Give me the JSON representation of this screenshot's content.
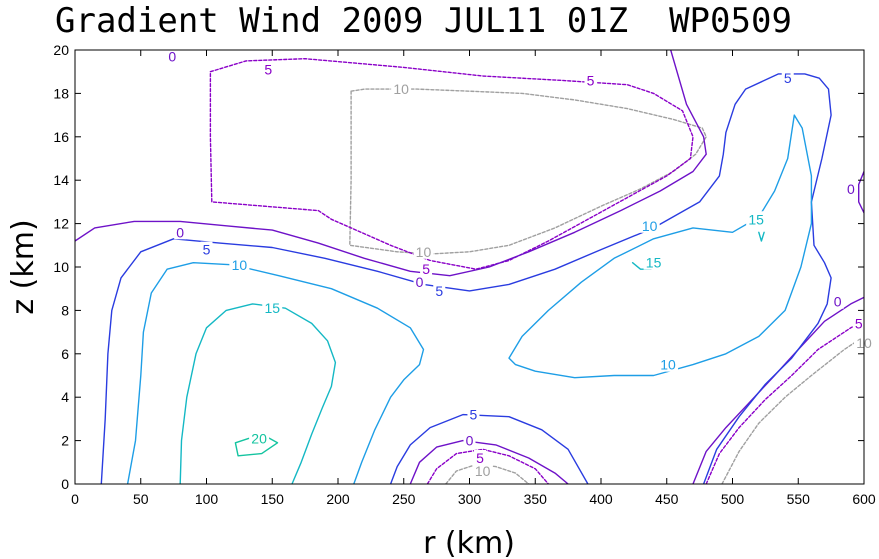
{
  "chart_data": {
    "type": "contour",
    "title": "Gradient Wind 2009 JUL11 01Z  WP0509",
    "xlabel": "r (km)",
    "ylabel": "z (km)",
    "xlim": [
      0,
      600
    ],
    "ylim": [
      0,
      20
    ],
    "xticks": [
      0,
      50,
      100,
      150,
      200,
      250,
      300,
      350,
      400,
      450,
      500,
      550,
      600
    ],
    "yticks": [
      0,
      2,
      4,
      6,
      8,
      10,
      12,
      14,
      16,
      18,
      20
    ],
    "grid": false,
    "colors": {
      "-10": "#a0a0a0",
      "-5": "#8a00c8",
      "0": "#6e12c8",
      "5": "#2a3ce0",
      "10": "#1e9ee6",
      "15": "#14b8c4",
      "20": "#14c4a0"
    },
    "contours": [
      {
        "level": "-10",
        "dashed": true,
        "points": [
          [
            210,
            18.1
          ],
          [
            220,
            18.2
          ],
          [
            260,
            18.2
          ],
          [
            300,
            18.1
          ],
          [
            340,
            18.0
          ],
          [
            380,
            17.7
          ],
          [
            420,
            17.3
          ],
          [
            455,
            16.8
          ],
          [
            477,
            16.4
          ],
          [
            480,
            16.0
          ],
          [
            472,
            15.2
          ],
          [
            455,
            14.4
          ],
          [
            430,
            13.6
          ],
          [
            400,
            12.8
          ],
          [
            365,
            11.8
          ],
          [
            330,
            11.0
          ],
          [
            300,
            10.7
          ],
          [
            270,
            10.6
          ],
          [
            245,
            10.7
          ],
          [
            209,
            11.0
          ],
          [
            210,
            14.0
          ],
          [
            210,
            18.1
          ]
        ]
      },
      {
        "level": "-10",
        "dashed": true,
        "points": [
          [
            282,
            0
          ],
          [
            290,
            0.6
          ],
          [
            305,
            0.9
          ],
          [
            320,
            0.8
          ],
          [
            335,
            0.5
          ],
          [
            345,
            0
          ]
        ]
      },
      {
        "level": "-10",
        "dashed": true,
        "points": [
          [
            492,
            0
          ],
          [
            505,
            1.5
          ],
          [
            520,
            2.8
          ],
          [
            540,
            4.0
          ],
          [
            560,
            5.0
          ],
          [
            585,
            6.2
          ],
          [
            600,
            6.8
          ]
        ]
      },
      {
        "level": "-5",
        "dashed": true,
        "points": [
          [
            103,
            19.0
          ],
          [
            130,
            19.5
          ],
          [
            175,
            19.6
          ],
          [
            250,
            19.2
          ],
          [
            310,
            18.8
          ],
          [
            370,
            18.6
          ],
          [
            420,
            18.4
          ],
          [
            440,
            18.0
          ],
          [
            462,
            17.2
          ],
          [
            470,
            16.0
          ],
          [
            468,
            15.0
          ],
          [
            450,
            14.2
          ],
          [
            420,
            13.2
          ],
          [
            390,
            12.2
          ],
          [
            360,
            11.2
          ],
          [
            330,
            10.3
          ],
          [
            305,
            9.9
          ],
          [
            270,
            10.3
          ],
          [
            240,
            11.0
          ],
          [
            210,
            11.8
          ],
          [
            195,
            12.2
          ],
          [
            185,
            12.6
          ],
          [
            104,
            13.0
          ],
          [
            103,
            16.0
          ],
          [
            103,
            19.0
          ]
        ]
      },
      {
        "level": "-5",
        "dashed": true,
        "points": [
          [
            268,
            0
          ],
          [
            275,
            0.7
          ],
          [
            290,
            1.4
          ],
          [
            310,
            1.6
          ],
          [
            330,
            1.3
          ],
          [
            350,
            0.7
          ],
          [
            360,
            0
          ]
        ]
      },
      {
        "level": "-5",
        "dashed": true,
        "points": [
          [
            480,
            0
          ],
          [
            490,
            1.4
          ],
          [
            505,
            2.6
          ],
          [
            525,
            3.9
          ],
          [
            545,
            5.0
          ],
          [
            565,
            6.2
          ],
          [
            590,
            7.2
          ],
          [
            600,
            7.5
          ]
        ]
      },
      {
        "level": "0",
        "dashed": false,
        "points": [
          [
            0,
            11.2
          ],
          [
            15,
            11.8
          ],
          [
            45,
            12.1
          ],
          [
            80,
            12.1
          ],
          [
            115,
            11.9
          ],
          [
            150,
            11.7
          ],
          [
            185,
            11.1
          ],
          [
            220,
            10.4
          ],
          [
            255,
            9.8
          ],
          [
            285,
            9.6
          ],
          [
            315,
            10.0
          ],
          [
            345,
            10.7
          ],
          [
            380,
            11.6
          ],
          [
            415,
            12.6
          ],
          [
            445,
            13.5
          ],
          [
            470,
            14.4
          ],
          [
            480,
            15.2
          ],
          [
            478,
            16.0
          ],
          [
            465,
            17.5
          ],
          [
            453,
            20
          ]
        ]
      },
      {
        "level": "0",
        "dashed": false,
        "points": [
          [
            255,
            0
          ],
          [
            262,
            1.0
          ],
          [
            275,
            1.7
          ],
          [
            295,
            2.0
          ],
          [
            320,
            1.8
          ],
          [
            345,
            1.2
          ],
          [
            365,
            0.5
          ],
          [
            375,
            0
          ]
        ]
      },
      {
        "level": "0",
        "dashed": false,
        "points": [
          [
            470,
            0
          ],
          [
            480,
            1.5
          ],
          [
            495,
            2.6
          ],
          [
            512,
            3.7
          ],
          [
            532,
            5.0
          ],
          [
            550,
            6.2
          ],
          [
            570,
            7.5
          ],
          [
            590,
            8.3
          ],
          [
            600,
            8.6
          ]
        ]
      },
      {
        "level": "0",
        "dashed": false,
        "points": [
          [
            600,
            12.5
          ],
          [
            596,
            13.0
          ],
          [
            596,
            13.8
          ],
          [
            600,
            14.4
          ]
        ]
      },
      {
        "level": "5",
        "dashed": false,
        "points": [
          [
            20,
            0
          ],
          [
            23,
            3
          ],
          [
            25,
            6
          ],
          [
            28,
            8
          ],
          [
            35,
            9.5
          ],
          [
            50,
            10.7
          ],
          [
            75,
            11.3
          ],
          [
            110,
            11.1
          ],
          [
            150,
            10.9
          ],
          [
            190,
            10.4
          ],
          [
            230,
            9.8
          ],
          [
            265,
            9.2
          ],
          [
            300,
            8.9
          ],
          [
            330,
            9.2
          ],
          [
            365,
            9.9
          ],
          [
            400,
            10.8
          ],
          [
            440,
            11.8
          ],
          [
            475,
            13.0
          ],
          [
            490,
            14.2
          ],
          [
            493,
            15.2
          ],
          [
            495,
            16.2
          ],
          [
            502,
            17.5
          ],
          [
            510,
            18.2
          ],
          [
            535,
            18.9
          ],
          [
            555,
            18.9
          ],
          [
            566,
            18.7
          ],
          [
            573,
            18.2
          ],
          [
            575,
            17.0
          ],
          [
            568,
            15.0
          ],
          [
            560,
            13.0
          ],
          [
            562,
            11.0
          ],
          [
            570,
            10.2
          ],
          [
            575,
            9.5
          ],
          [
            572,
            8.3
          ],
          [
            565,
            7.4
          ],
          [
            545,
            5.8
          ],
          [
            525,
            4.6
          ],
          [
            505,
            3.1
          ],
          [
            488,
            1.6
          ],
          [
            478,
            0
          ]
        ]
      },
      {
        "level": "5",
        "dashed": false,
        "points": [
          [
            240,
            0
          ],
          [
            245,
            0.8
          ],
          [
            255,
            1.8
          ],
          [
            270,
            2.6
          ],
          [
            295,
            3.2
          ],
          [
            330,
            3.1
          ],
          [
            355,
            2.5
          ],
          [
            375,
            1.6
          ],
          [
            390,
            0
          ]
        ]
      },
      {
        "level": "10",
        "dashed": false,
        "points": [
          [
            40,
            0
          ],
          [
            46,
            2
          ],
          [
            50,
            5
          ],
          [
            52,
            7
          ],
          [
            58,
            8.8
          ],
          [
            70,
            9.9
          ],
          [
            90,
            10.2
          ],
          [
            120,
            10.1
          ],
          [
            155,
            9.6
          ],
          [
            195,
            9.0
          ],
          [
            230,
            8.1
          ],
          [
            255,
            7.2
          ],
          [
            265,
            6.2
          ],
          [
            262,
            5.5
          ],
          [
            250,
            4.8
          ],
          [
            240,
            4.0
          ],
          [
            228,
            2.5
          ],
          [
            218,
            1.0
          ],
          [
            212,
            0
          ]
        ]
      },
      {
        "level": "10",
        "dashed": false,
        "points": [
          [
            330,
            5.8
          ],
          [
            340,
            6.8
          ],
          [
            360,
            8.0
          ],
          [
            385,
            9.3
          ],
          [
            410,
            10.4
          ],
          [
            440,
            11.3
          ],
          [
            470,
            11.8
          ],
          [
            500,
            11.6
          ],
          [
            520,
            12.3
          ],
          [
            532,
            13.5
          ],
          [
            542,
            15.0
          ],
          [
            547,
            17.0
          ],
          [
            553,
            16.4
          ],
          [
            560,
            14.2
          ],
          [
            560,
            12.0
          ],
          [
            552,
            10.0
          ],
          [
            540,
            8.0
          ],
          [
            520,
            6.8
          ],
          [
            495,
            6.0
          ],
          [
            470,
            5.5
          ],
          [
            440,
            5.0
          ],
          [
            410,
            5.0
          ],
          [
            380,
            4.9
          ],
          [
            350,
            5.2
          ],
          [
            335,
            5.5
          ],
          [
            330,
            5.8
          ]
        ]
      },
      {
        "level": "15",
        "dashed": false,
        "points": [
          [
            80,
            0
          ],
          [
            81,
            2.0
          ],
          [
            85,
            4.0
          ],
          [
            92,
            6.0
          ],
          [
            100,
            7.2
          ],
          [
            115,
            8.0
          ],
          [
            135,
            8.3
          ],
          [
            160,
            8.1
          ],
          [
            180,
            7.4
          ],
          [
            192,
            6.6
          ],
          [
            198,
            5.6
          ],
          [
            195,
            4.5
          ],
          [
            188,
            3.5
          ],
          [
            180,
            2.3
          ],
          [
            172,
            1.0
          ],
          [
            165,
            0
          ]
        ]
      },
      {
        "level": "15",
        "dashed": false,
        "points": [
          [
            424,
            10.2
          ],
          [
            430,
            9.9
          ],
          [
            438,
            9.9
          ],
          [
            444,
            10.1
          ]
        ]
      },
      {
        "level": "15",
        "dashed": false,
        "points": [
          [
            520,
            11.6
          ],
          [
            522,
            11.2
          ],
          [
            524,
            11.6
          ]
        ]
      },
      {
        "level": "20",
        "dashed": false,
        "points": [
          [
            122,
            1.9
          ],
          [
            132,
            2.1
          ],
          [
            145,
            2.2
          ],
          [
            154,
            1.9
          ],
          [
            142,
            1.4
          ],
          [
            124,
            1.3
          ],
          [
            122,
            1.9
          ]
        ]
      }
    ],
    "labels": [
      {
        "text": "0",
        "level": "0",
        "x": 74,
        "y": 19.7
      },
      {
        "text": "5",
        "level": "-5",
        "x": 147,
        "y": 19.1
      },
      {
        "text": "10",
        "level": "-10",
        "x": 248,
        "y": 18.2
      },
      {
        "text": "5",
        "level": "-5",
        "x": 392,
        "y": 18.6
      },
      {
        "text": "5",
        "level": "5",
        "x": 542,
        "y": 18.7
      },
      {
        "text": "10",
        "level": "-10",
        "x": 265,
        "y": 10.7
      },
      {
        "text": "5",
        "level": "-5",
        "x": 267,
        "y": 9.9
      },
      {
        "text": "0",
        "level": "0",
        "x": 262,
        "y": 9.3
      },
      {
        "text": "5",
        "level": "5",
        "x": 277,
        "y": 8.9
      },
      {
        "text": "0",
        "level": "0",
        "x": 80,
        "y": 11.6
      },
      {
        "text": "5",
        "level": "5",
        "x": 100,
        "y": 10.8
      },
      {
        "text": "10",
        "level": "10",
        "x": 125,
        "y": 10.1
      },
      {
        "text": "15",
        "level": "15",
        "x": 150,
        "y": 8.1
      },
      {
        "text": "10",
        "level": "10",
        "x": 437,
        "y": 11.9
      },
      {
        "text": "15",
        "level": "15",
        "x": 518,
        "y": 12.2
      },
      {
        "text": "15",
        "level": "15",
        "x": 440,
        "y": 10.2
      },
      {
        "text": "0",
        "level": "0",
        "x": 590,
        "y": 13.6
      },
      {
        "text": "0",
        "level": "0",
        "x": 580,
        "y": 8.4
      },
      {
        "text": "5",
        "level": "-5",
        "x": 596,
        "y": 7.4
      },
      {
        "text": "10",
        "level": "-10",
        "x": 600,
        "y": 6.5
      },
      {
        "text": "10",
        "level": "10",
        "x": 451,
        "y": 5.5
      },
      {
        "text": "20",
        "level": "20",
        "x": 140,
        "y": 2.1
      },
      {
        "text": "5",
        "level": "5",
        "x": 303,
        "y": 3.2
      },
      {
        "text": "0",
        "level": "0",
        "x": 300,
        "y": 2.0
      },
      {
        "text": "5",
        "level": "-5",
        "x": 308,
        "y": 1.2
      },
      {
        "text": "10",
        "level": "-10",
        "x": 310,
        "y": 0.6
      }
    ]
  }
}
